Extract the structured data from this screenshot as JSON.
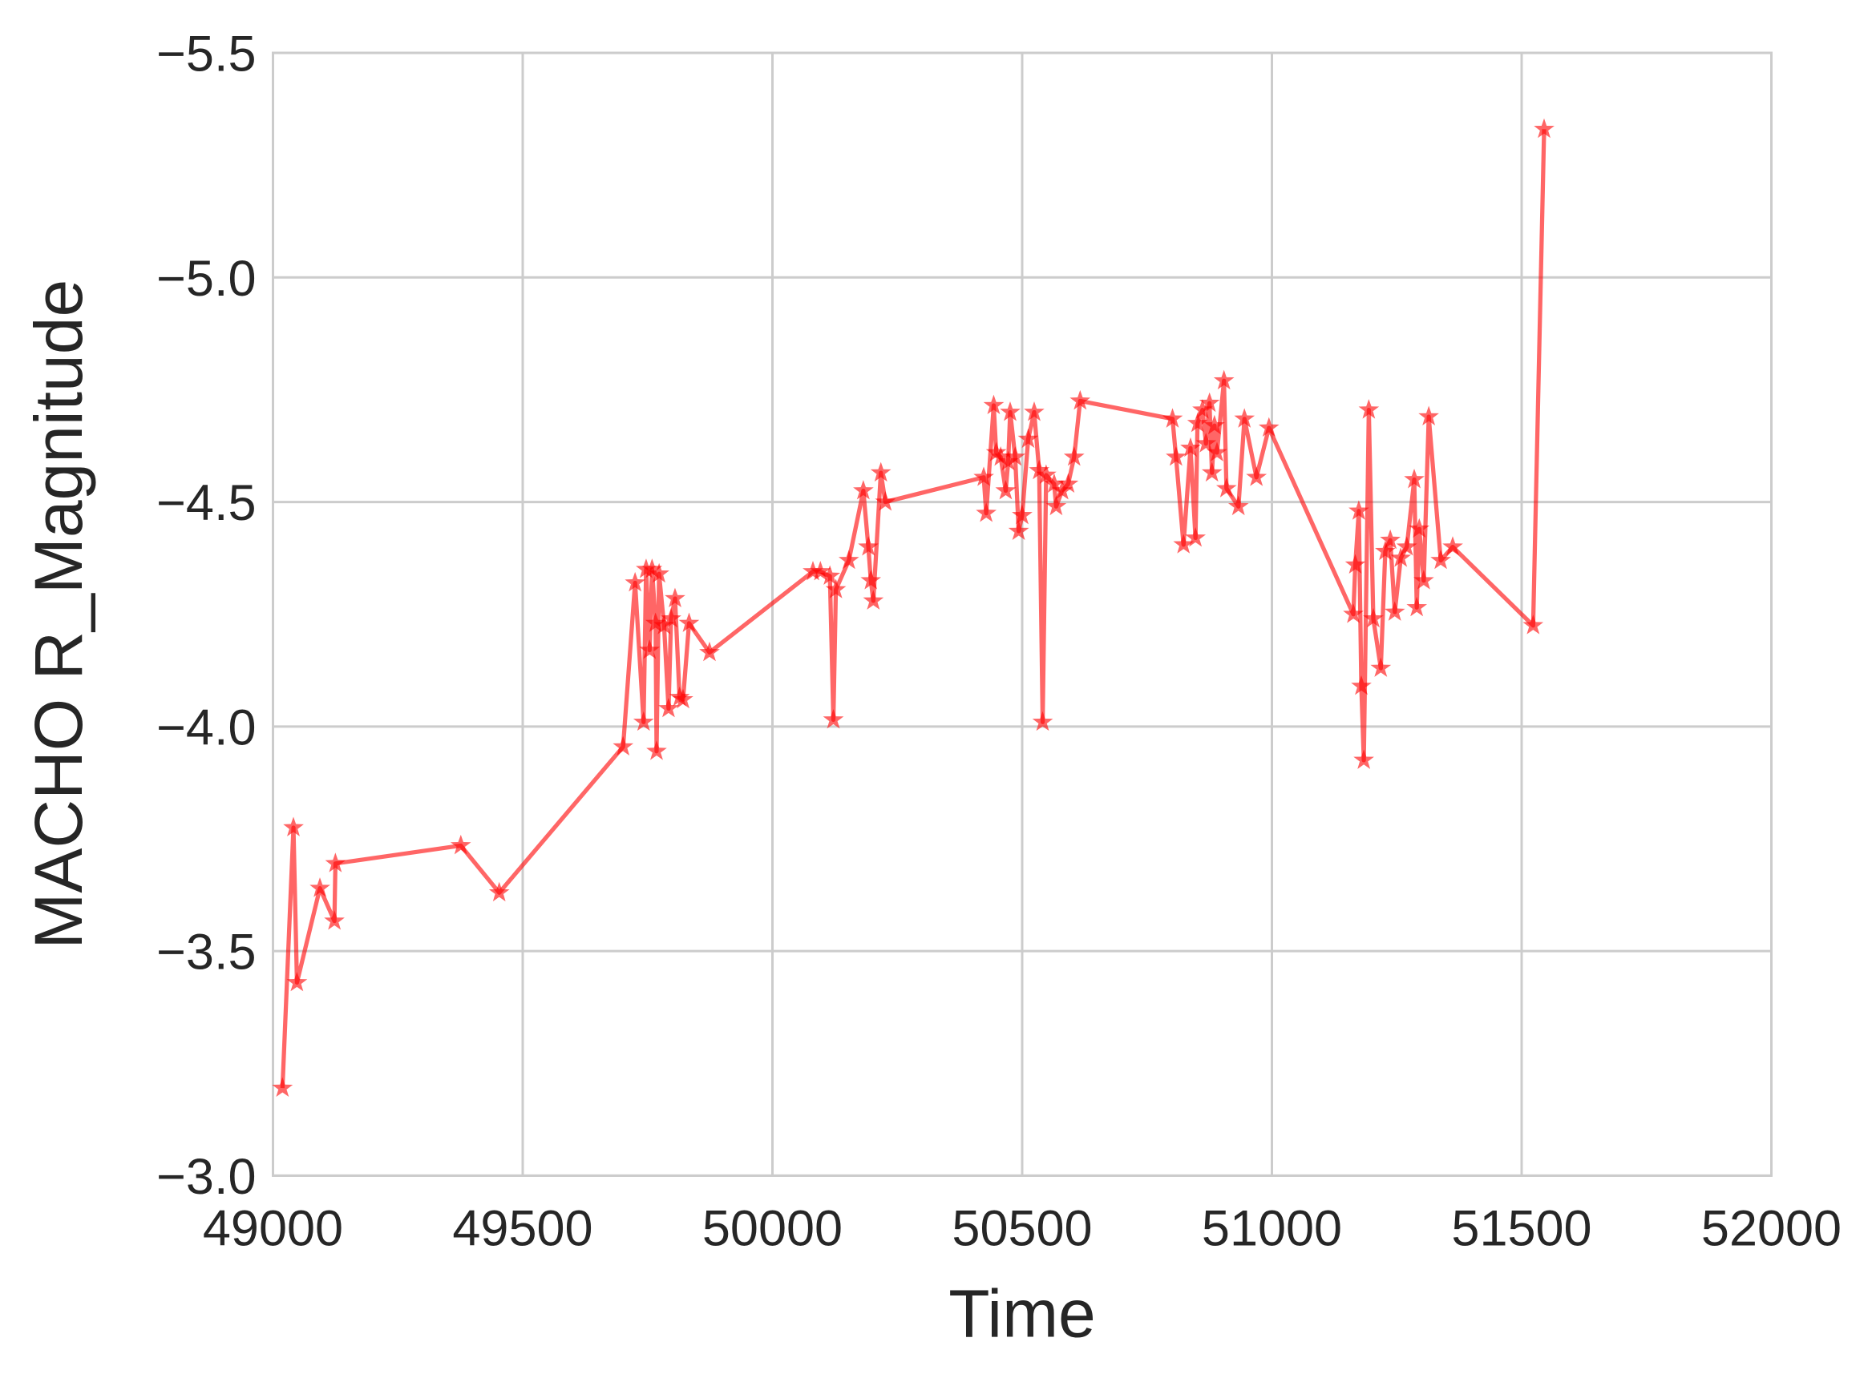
{
  "chart_data": {
    "type": "line",
    "xlabel": "Time",
    "ylabel": "MACHO R_Magnitude",
    "xlim": [
      49000,
      52000
    ],
    "xticks": [
      49000,
      49500,
      50000,
      50500,
      51000,
      51500,
      52000
    ],
    "ylim": [
      -3.0,
      -5.5
    ],
    "yticks": [
      {
        "value": -3.0,
        "label": "−3.0"
      },
      {
        "value": -3.5,
        "label": "−3.5"
      },
      {
        "value": -4.0,
        "label": "−4.0"
      },
      {
        "value": -4.5,
        "label": "−4.5"
      },
      {
        "value": -5.0,
        "label": "−5.0"
      },
      {
        "value": -5.5,
        "label": "−5.5"
      }
    ],
    "grid": true,
    "marker": "star",
    "series": [
      {
        "color": "#ff0000",
        "x": [
          49019,
          49041,
          49048,
          49094,
          49123,
          49125,
          49376,
          49453,
          49701,
          49725,
          49742,
          49747,
          49754,
          49759,
          49766,
          49768,
          49773,
          49783,
          49792,
          49797,
          49805,
          49814,
          49821,
          49833,
          49874,
          50081,
          50096,
          50115,
          50122,
          50127,
          50153,
          50182,
          50192,
          50197,
          50202,
          50217,
          50226,
          50423,
          50428,
          50443,
          50448,
          50457,
          50467,
          50472,
          50476,
          50486,
          50493,
          50500,
          50512,
          50524,
          50534,
          50541,
          50548,
          50564,
          50568,
          50580,
          50592,
          50604,
          50616,
          50801,
          50808,
          50823,
          50837,
          50847,
          50851,
          50861,
          50868,
          50875,
          50880,
          50885,
          50890,
          50904,
          50909,
          50933,
          50945,
          50969,
          50994,
          51163,
          51167,
          51174,
          51179,
          51184,
          51194,
          51203,
          51218,
          51227,
          51237,
          51246,
          51258,
          51270,
          51285,
          51290,
          51295,
          51304,
          51314,
          51338,
          51362,
          51523,
          51545
        ],
        "values": [
          -3.195,
          -3.775,
          -3.43,
          -3.64,
          -3.567,
          -3.695,
          -3.735,
          -3.63,
          -3.955,
          -4.32,
          -4.01,
          -4.35,
          -4.17,
          -4.35,
          -4.23,
          -3.945,
          -4.34,
          -4.225,
          -4.04,
          -4.24,
          -4.285,
          -4.065,
          -4.06,
          -4.23,
          -4.165,
          -4.345,
          -4.345,
          -4.335,
          -4.015,
          -4.305,
          -4.37,
          -4.525,
          -4.4,
          -4.325,
          -4.28,
          -4.565,
          -4.5,
          -4.555,
          -4.475,
          -4.715,
          -4.61,
          -4.6,
          -4.525,
          -4.59,
          -4.7,
          -4.6,
          -4.435,
          -4.47,
          -4.64,
          -4.7,
          -4.57,
          -4.01,
          -4.56,
          -4.54,
          -4.49,
          -4.525,
          -4.54,
          -4.6,
          -4.725,
          -4.685,
          -4.6,
          -4.405,
          -4.62,
          -4.42,
          -4.675,
          -4.705,
          -4.63,
          -4.72,
          -4.565,
          -4.67,
          -4.61,
          -4.77,
          -4.53,
          -4.49,
          -4.685,
          -4.555,
          -4.665,
          -4.25,
          -4.36,
          -4.48,
          -4.09,
          -3.925,
          -4.705,
          -4.24,
          -4.13,
          -4.39,
          -4.415,
          -4.255,
          -4.375,
          -4.4,
          -4.55,
          -4.265,
          -4.44,
          -4.325,
          -4.69,
          -4.37,
          -4.4,
          -4.225,
          -5.33
        ]
      }
    ]
  }
}
